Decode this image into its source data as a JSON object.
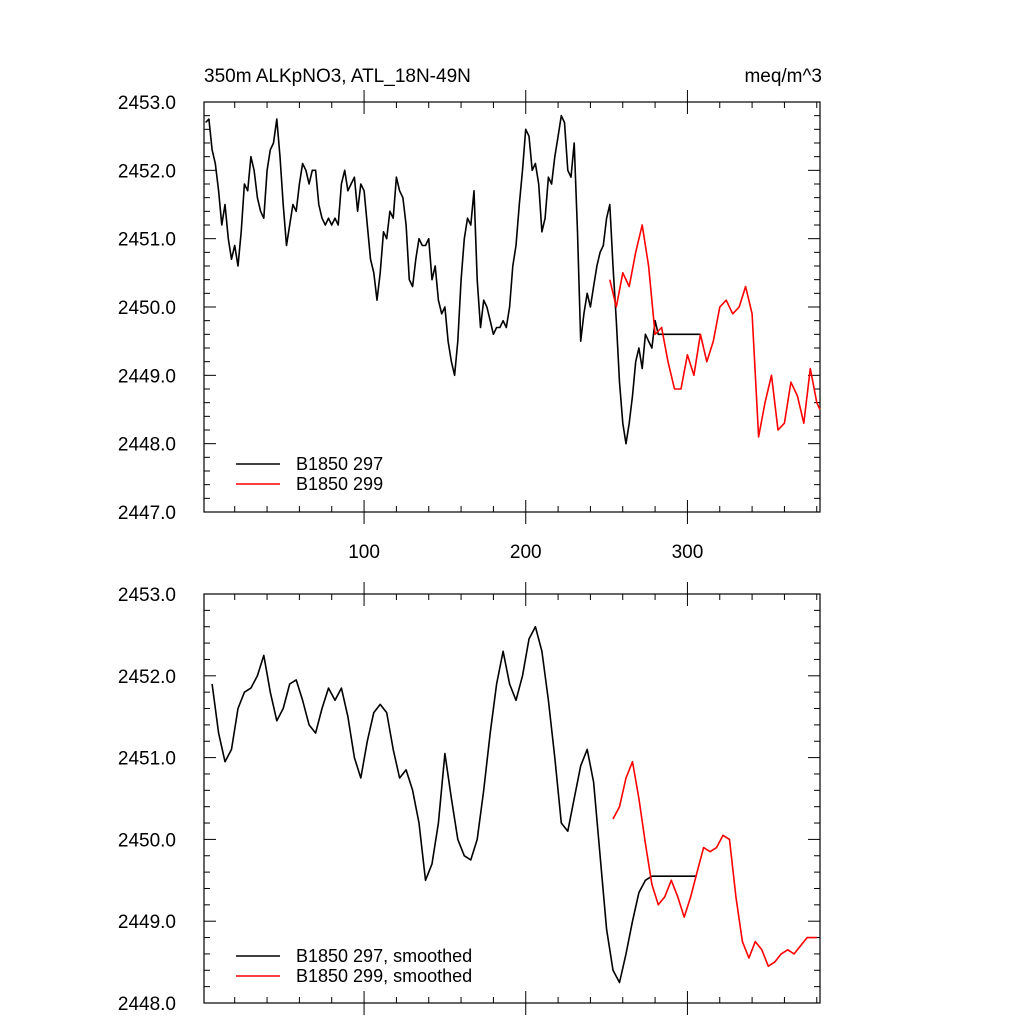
{
  "figure": {
    "title_left": "350m ALKpNO3, ATL_18N-49N",
    "title_right": "meq/m^3"
  },
  "chart_data": [
    {
      "type": "line",
      "title": "350m ALKpNO3, ATL_18N-49N",
      "units": "meq/m^3",
      "xlim": [
        1,
        382
      ],
      "ylim": [
        2447.0,
        2453.0
      ],
      "x_ticks": [
        100,
        200,
        300
      ],
      "x_tick_labels": [
        "100",
        "200",
        "300"
      ],
      "y_ticks": [
        2447.0,
        2448.0,
        2449.0,
        2450.0,
        2451.0,
        2452.0,
        2453.0
      ],
      "y_tick_labels": [
        "2447.0",
        "2448.0",
        "2449.0",
        "2450.0",
        "2451.0",
        "2452.0",
        "2453.0"
      ],
      "legend": [
        "B1850 297",
        "B1850 299"
      ],
      "legend_position": "bottom-left",
      "series": [
        {
          "name": "B1850 297",
          "color": "#000000",
          "x": [
            2,
            4,
            6,
            8,
            10,
            12,
            14,
            16,
            18,
            20,
            22,
            24,
            26,
            28,
            30,
            32,
            34,
            36,
            38,
            40,
            42,
            44,
            46,
            48,
            50,
            52,
            54,
            56,
            58,
            60,
            62,
            64,
            66,
            68,
            70,
            72,
            74,
            76,
            78,
            80,
            82,
            84,
            86,
            88,
            90,
            92,
            94,
            96,
            98,
            100,
            102,
            104,
            106,
            108,
            110,
            112,
            114,
            116,
            118,
            120,
            122,
            124,
            126,
            128,
            130,
            132,
            134,
            136,
            138,
            140,
            142,
            144,
            146,
            148,
            150,
            152,
            154,
            156,
            158,
            160,
            162,
            164,
            166,
            168,
            170,
            172,
            174,
            176,
            178,
            180,
            182,
            184,
            186,
            188,
            190,
            192,
            194,
            196,
            198,
            200,
            202,
            204,
            206,
            208,
            210,
            212,
            214,
            216,
            218,
            220,
            222,
            224,
            226,
            228,
            230,
            232,
            234,
            236,
            238,
            240,
            242,
            244,
            246,
            248,
            250,
            252,
            254,
            256,
            258,
            260,
            262,
            264,
            266,
            268,
            270,
            272,
            274,
            276,
            278,
            280,
            282,
            284,
            286,
            288,
            290,
            292,
            294,
            296,
            298,
            300,
            302,
            304,
            306,
            308
          ],
          "values": [
            2452.7,
            2452.75,
            2452.3,
            2452.1,
            2451.7,
            2451.2,
            2451.5,
            2451.0,
            2450.7,
            2450.9,
            2450.6,
            2451.1,
            2451.8,
            2451.7,
            2452.2,
            2452.0,
            2451.6,
            2451.4,
            2451.3,
            2452.0,
            2452.3,
            2452.4,
            2452.75,
            2452.2,
            2451.5,
            2450.9,
            2451.2,
            2451.5,
            2451.4,
            2451.8,
            2452.1,
            2452.0,
            2451.8,
            2452.0,
            2452.0,
            2451.5,
            2451.3,
            2451.2,
            2451.3,
            2451.2,
            2451.3,
            2451.2,
            2451.8,
            2452.0,
            2451.7,
            2451.8,
            2451.9,
            2451.4,
            2451.8,
            2451.7,
            2451.2,
            2450.7,
            2450.5,
            2450.1,
            2450.5,
            2451.1,
            2451.0,
            2451.4,
            2451.3,
            2451.9,
            2451.7,
            2451.6,
            2451.2,
            2450.4,
            2450.3,
            2450.7,
            2451.0,
            2450.9,
            2450.9,
            2451.0,
            2450.4,
            2450.6,
            2450.1,
            2449.9,
            2450.0,
            2449.5,
            2449.2,
            2449.0,
            2449.5,
            2450.4,
            2451.0,
            2451.3,
            2451.2,
            2451.7,
            2450.4,
            2449.7,
            2450.1,
            2450.0,
            2449.8,
            2449.6,
            2449.7,
            2449.7,
            2449.8,
            2449.7,
            2450.0,
            2450.6,
            2450.9,
            2451.5,
            2452.0,
            2452.6,
            2452.5,
            2452.0,
            2452.1,
            2451.8,
            2451.1,
            2451.3,
            2451.9,
            2451.8,
            2452.2,
            2452.5,
            2452.8,
            2452.7,
            2452.0,
            2451.9,
            2452.4,
            2451.1,
            2449.5,
            2449.9,
            2450.2,
            2450.0,
            2450.3,
            2450.6,
            2450.8,
            2450.9,
            2451.3,
            2451.5,
            2450.6,
            2449.8,
            2448.9,
            2448.3,
            2448.0,
            2448.3,
            2448.7,
            2449.2,
            2449.4,
            2449.1,
            2449.6,
            2449.5,
            2449.4,
            2449.8,
            2449.6,
            2449.6,
            2449.6,
            2449.6,
            2449.6,
            2449.6,
            2449.6,
            2449.6,
            2449.6,
            2449.6,
            2449.6,
            2449.6,
            2449.6,
            2449.6
          ]
        },
        {
          "name": "B1850 299",
          "color": "#ff0000",
          "x": [
            252,
            256,
            260,
            264,
            268,
            272,
            276,
            280,
            284,
            288,
            292,
            296,
            300,
            304,
            308,
            312,
            316,
            320,
            324,
            328,
            332,
            336,
            340,
            344,
            348,
            352,
            356,
            360,
            364,
            368,
            372,
            376,
            380,
            382
          ],
          "values": [
            2450.4,
            2450.0,
            2450.5,
            2450.3,
            2450.8,
            2451.2,
            2450.6,
            2449.6,
            2449.7,
            2449.2,
            2448.8,
            2448.8,
            2449.3,
            2449.0,
            2449.6,
            2449.2,
            2449.5,
            2450.0,
            2450.1,
            2449.9,
            2450.0,
            2450.3,
            2449.9,
            2448.1,
            2448.6,
            2449.0,
            2448.2,
            2448.3,
            2448.9,
            2448.7,
            2448.3,
            2449.1,
            2448.6,
            2448.5
          ]
        }
      ]
    },
    {
      "type": "line",
      "xlim": [
        1,
        382
      ],
      "ylim": [
        2448.0,
        2453.0
      ],
      "y_ticks": [
        2448.0,
        2449.0,
        2450.0,
        2451.0,
        2452.0,
        2453.0
      ],
      "y_tick_labels": [
        "2448.0",
        "2449.0",
        "2450.0",
        "2451.0",
        "2452.0",
        "2453.0"
      ],
      "legend": [
        "B1850 297, smoothed",
        "B1850 299, smoothed"
      ],
      "legend_position": "bottom-left",
      "series": [
        {
          "name": "B1850 297, smoothed",
          "color": "#000000",
          "x": [
            6,
            10,
            14,
            18,
            22,
            26,
            30,
            34,
            38,
            42,
            46,
            50,
            54,
            58,
            62,
            66,
            70,
            74,
            78,
            82,
            86,
            90,
            94,
            98,
            102,
            106,
            110,
            114,
            118,
            122,
            126,
            130,
            134,
            138,
            142,
            146,
            150,
            154,
            158,
            162,
            166,
            170,
            174,
            178,
            182,
            186,
            190,
            194,
            198,
            202,
            206,
            210,
            214,
            218,
            222,
            226,
            230,
            234,
            238,
            242,
            246,
            250,
            254,
            258,
            262,
            266,
            270,
            274,
            278,
            282,
            286,
            290,
            294,
            298,
            302,
            305
          ],
          "values": [
            2451.9,
            2451.3,
            2450.95,
            2451.1,
            2451.6,
            2451.8,
            2451.85,
            2452.0,
            2452.25,
            2451.8,
            2451.45,
            2451.6,
            2451.9,
            2451.95,
            2451.7,
            2451.4,
            2451.3,
            2451.6,
            2451.85,
            2451.7,
            2451.85,
            2451.5,
            2451.0,
            2450.75,
            2451.2,
            2451.55,
            2451.65,
            2451.55,
            2451.1,
            2450.75,
            2450.85,
            2450.6,
            2450.2,
            2449.5,
            2449.7,
            2450.2,
            2451.05,
            2450.5,
            2450.0,
            2449.8,
            2449.75,
            2450.0,
            2450.6,
            2451.3,
            2451.9,
            2452.3,
            2451.9,
            2451.7,
            2452.0,
            2452.45,
            2452.6,
            2452.3,
            2451.7,
            2451.0,
            2450.2,
            2450.1,
            2450.5,
            2450.9,
            2451.1,
            2450.7,
            2449.8,
            2448.9,
            2448.4,
            2448.25,
            2448.6,
            2449.0,
            2449.35,
            2449.5,
            2449.55,
            2449.55,
            2449.55,
            2449.55,
            2449.55,
            2449.55,
            2449.55,
            2449.55
          ]
        },
        {
          "name": "B1850 299, smoothed",
          "color": "#ff0000",
          "x": [
            254,
            258,
            262,
            266,
            270,
            274,
            278,
            282,
            286,
            290,
            294,
            298,
            302,
            306,
            310,
            314,
            318,
            322,
            326,
            330,
            334,
            338,
            342,
            346,
            350,
            354,
            358,
            362,
            366,
            370,
            374,
            378,
            380
          ],
          "values": [
            2450.25,
            2450.4,
            2450.75,
            2450.95,
            2450.5,
            2449.95,
            2449.45,
            2449.2,
            2449.3,
            2449.5,
            2449.3,
            2449.05,
            2449.3,
            2449.6,
            2449.9,
            2449.85,
            2449.9,
            2450.05,
            2450.0,
            2449.3,
            2448.75,
            2448.55,
            2448.75,
            2448.65,
            2448.45,
            2448.5,
            2448.6,
            2448.65,
            2448.6,
            2448.7,
            2448.8,
            2448.8,
            2448.8
          ]
        }
      ]
    }
  ]
}
